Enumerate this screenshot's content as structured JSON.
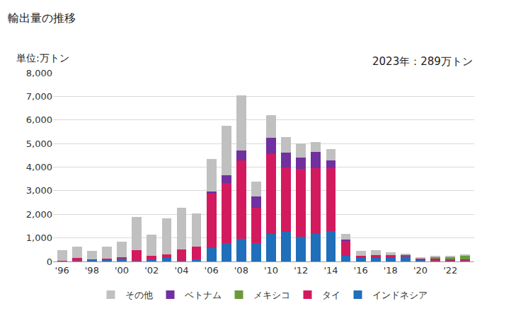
{
  "chart_data": {
    "type": "bar",
    "stacked": true,
    "title": "輸出量の推移",
    "y_axis_label": "単位:万トン",
    "annotations": [
      "2023年：289万トン"
    ],
    "categories": [
      "'96",
      null,
      "'98",
      null,
      "'00",
      null,
      "'02",
      null,
      "'04",
      null,
      "'06",
      null,
      "'08",
      null,
      "'10",
      null,
      "'12",
      null,
      "'14",
      null,
      "'16",
      null,
      "'18",
      null,
      "'20",
      null,
      "'22",
      null
    ],
    "series": [
      {
        "name": "インドネシア",
        "color": "#1f6fba",
        "values": [
          10,
          20,
          60,
          80,
          130,
          30,
          80,
          150,
          20,
          80,
          560,
          780,
          960,
          790,
          1170,
          1270,
          1040,
          1180,
          1300,
          240,
          150,
          140,
          150,
          230,
          60,
          40,
          40,
          20
        ]
      },
      {
        "name": "タイ",
        "color": "#d41a5e",
        "values": [
          20,
          130,
          20,
          50,
          60,
          450,
          160,
          150,
          490,
          540,
          2320,
          2560,
          3330,
          1500,
          3370,
          2710,
          2900,
          2770,
          2660,
          620,
          90,
          130,
          130,
          40,
          60,
          100,
          50,
          70
        ]
      },
      {
        "name": "メキシコ",
        "color": "#6b9a3a",
        "values": [
          0,
          0,
          0,
          0,
          0,
          0,
          0,
          0,
          0,
          0,
          0,
          0,
          0,
          0,
          0,
          0,
          0,
          0,
          0,
          0,
          0,
          0,
          0,
          0,
          0,
          40,
          110,
          170
        ]
      },
      {
        "name": "ベトナム",
        "color": "#7030a0",
        "values": [
          0,
          0,
          0,
          0,
          0,
          0,
          0,
          0,
          0,
          0,
          100,
          310,
          420,
          470,
          700,
          640,
          460,
          700,
          310,
          80,
          0,
          0,
          0,
          20,
          0,
          0,
          0,
          0
        ]
      },
      {
        "name": "その他",
        "color": "#c0c0c0",
        "values": [
          450,
          470,
          370,
          490,
          640,
          1420,
          890,
          1520,
          1770,
          1430,
          1350,
          2100,
          2340,
          620,
          960,
          650,
          600,
          410,
          490,
          240,
          200,
          210,
          120,
          40,
          50,
          50,
          30,
          29
        ]
      }
    ],
    "ylim": [
      0,
      8000
    ],
    "yticks": [
      0,
      {
        "value": 1000,
        "label": "1,000"
      },
      {
        "value": 2000,
        "label": "2,000"
      },
      {
        "value": 3000,
        "label": "3,000"
      },
      {
        "value": 4000,
        "label": "4,000"
      },
      {
        "value": 5000,
        "label": "5,000"
      },
      {
        "value": 6000,
        "label": "6,000"
      },
      {
        "value": 7000,
        "label": "7,000"
      },
      {
        "value": 8000,
        "label": "8,000"
      }
    ],
    "grid": true,
    "legend": "bottom"
  }
}
